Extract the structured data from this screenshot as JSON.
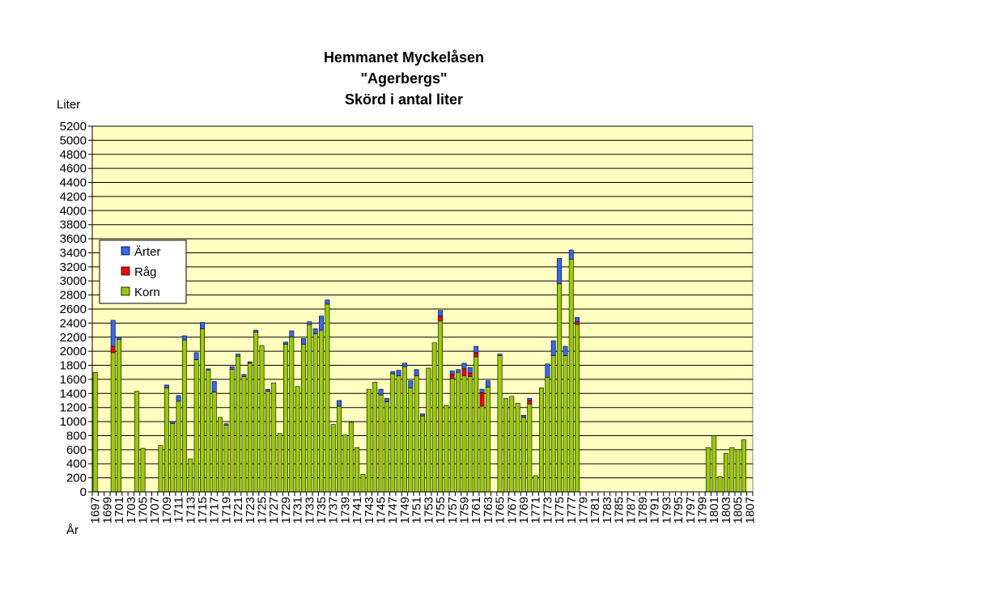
{
  "chart_data": {
    "type": "bar",
    "stacked": true,
    "title_lines": [
      "Hemmanet Myckelåsen",
      "\"Agerbergs\"",
      "Skörd i antal liter"
    ],
    "ylabel": "Liter",
    "xlabel": "År",
    "ylim": [
      0,
      5200
    ],
    "ytick_step": 200,
    "grid": true,
    "legend_position": "left",
    "x_start": 1697,
    "x_end": 1807,
    "x_tick_step": 2,
    "colors": {
      "plot_background": "#ffffc0",
      "Korn": "#99cc00",
      "Råg": "#ff0000",
      "Ärter": "#3366ff",
      "outline": "#000000"
    },
    "legend_order": [
      "Ärter",
      "Råg",
      "Korn"
    ],
    "bars": [
      {
        "year": 1697,
        "Korn": 1700,
        "Råg": 0,
        "Ärter": 0
      },
      {
        "year": 1700,
        "Korn": 1980,
        "Råg": 90,
        "Ärter": 370
      },
      {
        "year": 1701,
        "Korn": 2170,
        "Råg": 0,
        "Ärter": 30
      },
      {
        "year": 1704,
        "Korn": 1430,
        "Råg": 0,
        "Ärter": 0
      },
      {
        "year": 1705,
        "Korn": 620,
        "Råg": 0,
        "Ärter": 0
      },
      {
        "year": 1708,
        "Korn": 660,
        "Råg": 0,
        "Ärter": 0
      },
      {
        "year": 1709,
        "Korn": 1480,
        "Råg": 0,
        "Ärter": 40
      },
      {
        "year": 1710,
        "Korn": 970,
        "Råg": 0,
        "Ärter": 30
      },
      {
        "year": 1711,
        "Korn": 1290,
        "Råg": 0,
        "Ärter": 80
      },
      {
        "year": 1712,
        "Korn": 2160,
        "Råg": 0,
        "Ärter": 60
      },
      {
        "year": 1713,
        "Korn": 470,
        "Råg": 0,
        "Ärter": 0
      },
      {
        "year": 1714,
        "Korn": 1880,
        "Råg": 0,
        "Ärter": 100
      },
      {
        "year": 1715,
        "Korn": 2320,
        "Råg": 0,
        "Ärter": 90
      },
      {
        "year": 1716,
        "Korn": 1730,
        "Råg": 0,
        "Ärter": 20
      },
      {
        "year": 1717,
        "Korn": 1420,
        "Råg": 0,
        "Ärter": 150
      },
      {
        "year": 1718,
        "Korn": 1060,
        "Råg": 0,
        "Ärter": 0
      },
      {
        "year": 1719,
        "Korn": 950,
        "Råg": 0,
        "Ärter": 20
      },
      {
        "year": 1720,
        "Korn": 1740,
        "Råg": 0,
        "Ärter": 40
      },
      {
        "year": 1721,
        "Korn": 1930,
        "Råg": 0,
        "Ärter": 30
      },
      {
        "year": 1722,
        "Korn": 1640,
        "Råg": 0,
        "Ärter": 30
      },
      {
        "year": 1723,
        "Korn": 1830,
        "Råg": 0,
        "Ärter": 20
      },
      {
        "year": 1724,
        "Korn": 2270,
        "Råg": 0,
        "Ärter": 30
      },
      {
        "year": 1725,
        "Korn": 2080,
        "Råg": 0,
        "Ärter": 0
      },
      {
        "year": 1726,
        "Korn": 1430,
        "Råg": 0,
        "Ärter": 30
      },
      {
        "year": 1727,
        "Korn": 1550,
        "Råg": 0,
        "Ärter": 0
      },
      {
        "year": 1728,
        "Korn": 830,
        "Råg": 0,
        "Ärter": 0
      },
      {
        "year": 1729,
        "Korn": 2100,
        "Råg": 0,
        "Ärter": 30
      },
      {
        "year": 1730,
        "Korn": 2200,
        "Råg": 0,
        "Ärter": 90
      },
      {
        "year": 1731,
        "Korn": 1500,
        "Råg": 0,
        "Ärter": 0
      },
      {
        "year": 1732,
        "Korn": 2100,
        "Råg": 0,
        "Ärter": 80
      },
      {
        "year": 1733,
        "Korn": 2380,
        "Råg": 0,
        "Ärter": 40
      },
      {
        "year": 1734,
        "Korn": 2250,
        "Råg": 0,
        "Ärter": 70
      },
      {
        "year": 1735,
        "Korn": 2300,
        "Råg": 0,
        "Ärter": 200
      },
      {
        "year": 1736,
        "Korn": 2670,
        "Råg": 0,
        "Ärter": 60
      },
      {
        "year": 1737,
        "Korn": 960,
        "Råg": 0,
        "Ärter": 0
      },
      {
        "year": 1738,
        "Korn": 1220,
        "Råg": 0,
        "Ärter": 80
      },
      {
        "year": 1739,
        "Korn": 810,
        "Råg": 0,
        "Ärter": 0
      },
      {
        "year": 1740,
        "Korn": 990,
        "Råg": 0,
        "Ärter": 0
      },
      {
        "year": 1741,
        "Korn": 630,
        "Råg": 0,
        "Ärter": 0
      },
      {
        "year": 1742,
        "Korn": 250,
        "Råg": 0,
        "Ärter": 0
      },
      {
        "year": 1743,
        "Korn": 1460,
        "Råg": 0,
        "Ärter": 0
      },
      {
        "year": 1744,
        "Korn": 1560,
        "Råg": 0,
        "Ärter": 0
      },
      {
        "year": 1745,
        "Korn": 1380,
        "Råg": 0,
        "Ärter": 80
      },
      {
        "year": 1746,
        "Korn": 1280,
        "Råg": 0,
        "Ärter": 50
      },
      {
        "year": 1747,
        "Korn": 1680,
        "Råg": 0,
        "Ärter": 30
      },
      {
        "year": 1748,
        "Korn": 1650,
        "Råg": 0,
        "Ärter": 80
      },
      {
        "year": 1749,
        "Korn": 1780,
        "Råg": 0,
        "Ärter": 50
      },
      {
        "year": 1750,
        "Korn": 1480,
        "Råg": 0,
        "Ärter": 100
      },
      {
        "year": 1751,
        "Korn": 1650,
        "Råg": 0,
        "Ärter": 90
      },
      {
        "year": 1752,
        "Korn": 1080,
        "Råg": 0,
        "Ärter": 30
      },
      {
        "year": 1753,
        "Korn": 1760,
        "Råg": 0,
        "Ärter": 0
      },
      {
        "year": 1754,
        "Korn": 2120,
        "Råg": 0,
        "Ärter": 0
      },
      {
        "year": 1755,
        "Korn": 2430,
        "Råg": 70,
        "Ärter": 80
      },
      {
        "year": 1756,
        "Korn": 1230,
        "Råg": 0,
        "Ärter": 0
      },
      {
        "year": 1757,
        "Korn": 1610,
        "Råg": 60,
        "Ärter": 50
      },
      {
        "year": 1758,
        "Korn": 1700,
        "Råg": 0,
        "Ärter": 40
      },
      {
        "year": 1759,
        "Korn": 1650,
        "Råg": 100,
        "Ärter": 80
      },
      {
        "year": 1760,
        "Korn": 1640,
        "Råg": 50,
        "Ärter": 80
      },
      {
        "year": 1761,
        "Korn": 1920,
        "Råg": 60,
        "Ärter": 90
      },
      {
        "year": 1762,
        "Korn": 1220,
        "Råg": 190,
        "Ärter": 50
      },
      {
        "year": 1763,
        "Korn": 1490,
        "Råg": 0,
        "Ärter": 90
      },
      {
        "year": 1765,
        "Korn": 1940,
        "Råg": 0,
        "Ärter": 20
      },
      {
        "year": 1766,
        "Korn": 1330,
        "Råg": 0,
        "Ärter": 0
      },
      {
        "year": 1767,
        "Korn": 1360,
        "Råg": 0,
        "Ärter": 0
      },
      {
        "year": 1768,
        "Korn": 1260,
        "Råg": 0,
        "Ärter": 0
      },
      {
        "year": 1769,
        "Korn": 1060,
        "Råg": 0,
        "Ärter": 30
      },
      {
        "year": 1770,
        "Korn": 1250,
        "Råg": 50,
        "Ärter": 30
      },
      {
        "year": 1771,
        "Korn": 230,
        "Råg": 0,
        "Ärter": 0
      },
      {
        "year": 1772,
        "Korn": 1480,
        "Råg": 0,
        "Ärter": 0
      },
      {
        "year": 1773,
        "Korn": 1630,
        "Råg": 0,
        "Ärter": 190
      },
      {
        "year": 1774,
        "Korn": 1940,
        "Råg": 0,
        "Ärter": 210
      },
      {
        "year": 1775,
        "Korn": 2960,
        "Råg": 0,
        "Ärter": 360
      },
      {
        "year": 1776,
        "Korn": 1940,
        "Råg": 0,
        "Ärter": 130
      },
      {
        "year": 1777,
        "Korn": 3310,
        "Råg": 0,
        "Ärter": 130
      },
      {
        "year": 1778,
        "Korn": 2380,
        "Råg": 40,
        "Ärter": 60
      },
      {
        "year": 1800,
        "Korn": 630,
        "Råg": 0,
        "Ärter": 0
      },
      {
        "year": 1801,
        "Korn": 800,
        "Råg": 0,
        "Ärter": 0
      },
      {
        "year": 1802,
        "Korn": 220,
        "Råg": 0,
        "Ärter": 0
      },
      {
        "year": 1803,
        "Korn": 550,
        "Råg": 0,
        "Ärter": 0
      },
      {
        "year": 1804,
        "Korn": 630,
        "Råg": 0,
        "Ärter": 0
      },
      {
        "year": 1805,
        "Korn": 600,
        "Råg": 0,
        "Ärter": 0
      },
      {
        "year": 1806,
        "Korn": 740,
        "Råg": 0,
        "Ärter": 0
      }
    ]
  }
}
